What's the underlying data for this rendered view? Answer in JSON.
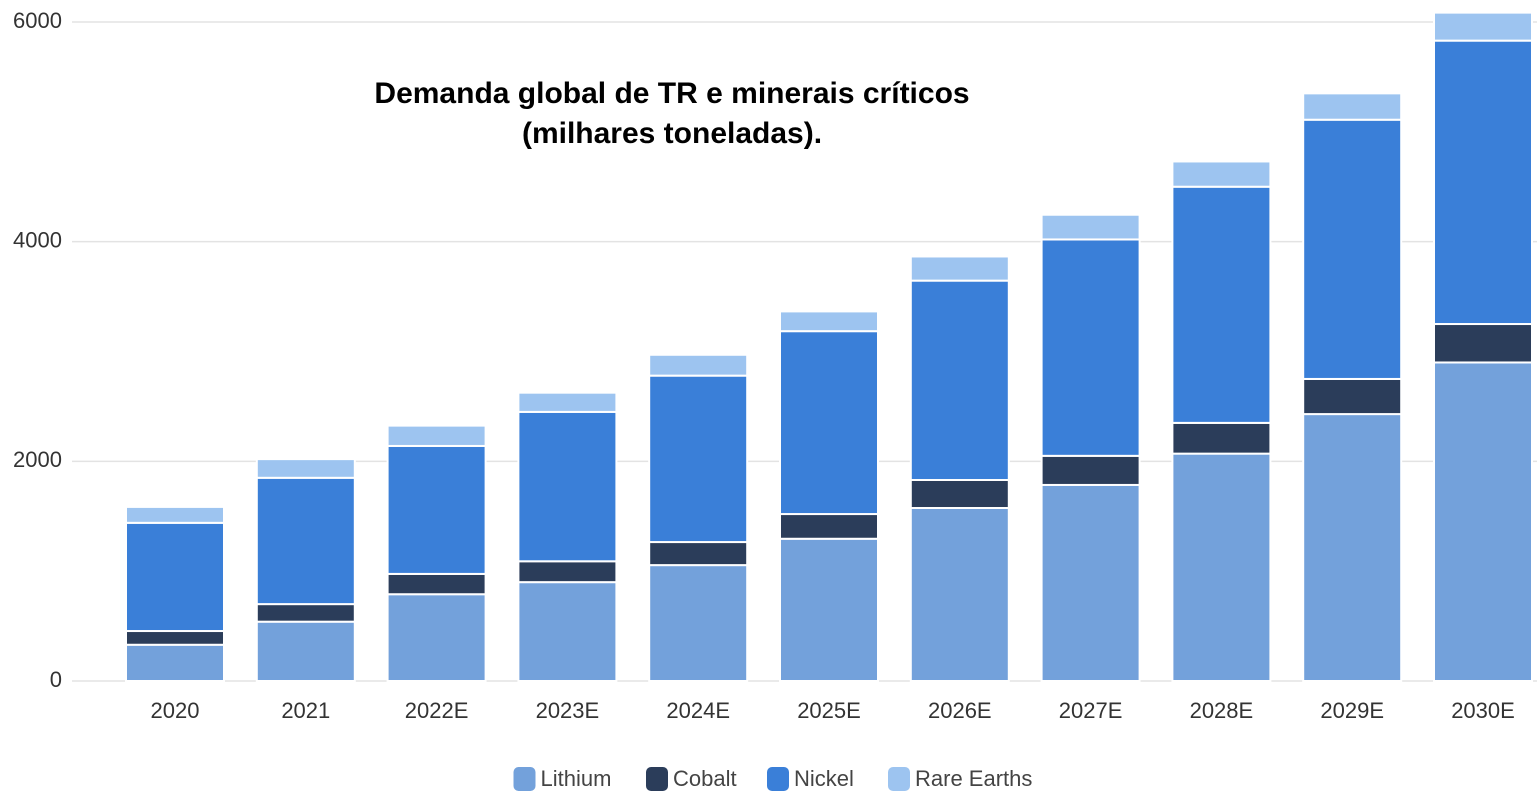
{
  "chart_data": {
    "type": "stacked_bar",
    "title": [
      "Demanda global de TR e minerais críticos",
      "(milhares toneladas)."
    ],
    "categories": [
      "2020",
      "2021",
      "2022E",
      "2023E",
      "2024E",
      "2025E",
      "2026E",
      "2027E",
      "2028E",
      "2029E",
      "2030E"
    ],
    "series": [
      {
        "name": "Lithium",
        "color": "#73a1db",
        "values": [
          330,
          540,
          790,
          900,
          1055,
          1295,
          1575,
          1785,
          2070,
          2430,
          2900
        ]
      },
      {
        "name": "Cobalt",
        "color": "#2b3d5a",
        "values": [
          125,
          160,
          185,
          190,
          210,
          225,
          255,
          265,
          280,
          320,
          350
        ]
      },
      {
        "name": "Nickel",
        "color": "#3a7fd8",
        "values": [
          985,
          1150,
          1165,
          1360,
          1515,
          1665,
          1815,
          1970,
          2150,
          2360,
          2580
        ]
      },
      {
        "name": "Rare Earths",
        "color": "#9dc4f0",
        "values": [
          145,
          170,
          185,
          175,
          190,
          180,
          220,
          225,
          230,
          240,
          255
        ]
      }
    ],
    "ylim": [
      0,
      6200
    ],
    "yticks": [
      0,
      2000,
      4000,
      6000
    ],
    "grid": true,
    "legend": "bottom"
  }
}
